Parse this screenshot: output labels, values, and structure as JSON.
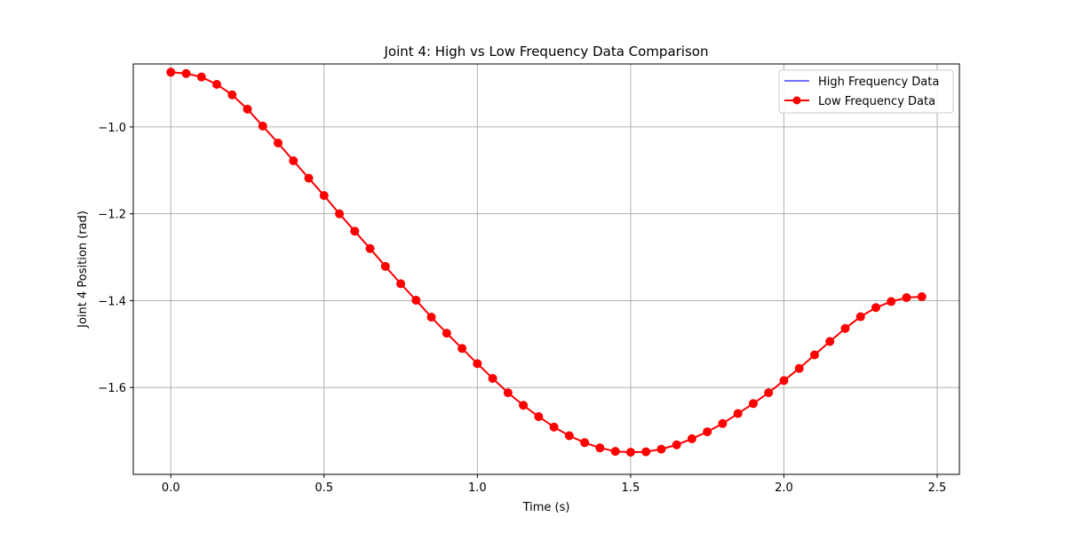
{
  "chart_data": {
    "type": "line",
    "title": "Joint 4: High vs Low Frequency Data Comparison",
    "xlabel": "Time (s)",
    "ylabel": "Joint 4 Position (rad)",
    "xlim": [
      -0.1225,
      2.5725
    ],
    "ylim": [
      -1.8,
      -0.855
    ],
    "xticks": [
      0.0,
      0.5,
      1.0,
      1.5,
      2.0,
      2.5
    ],
    "xtick_labels": [
      "0.0",
      "0.5",
      "1.0",
      "1.5",
      "2.0",
      "2.5"
    ],
    "yticks": [
      -1.0,
      -1.2,
      -1.4,
      -1.6
    ],
    "ytick_labels": [
      "−1.0",
      "−1.2",
      "−1.4",
      "−1.6"
    ],
    "grid": true,
    "legend_position": "top-right",
    "x": [
      0.0,
      0.05,
      0.1,
      0.15,
      0.2,
      0.25,
      0.3,
      0.35,
      0.4,
      0.45,
      0.5,
      0.55,
      0.6,
      0.65,
      0.7,
      0.75,
      0.8,
      0.85,
      0.9,
      0.95,
      1.0,
      1.05,
      1.1,
      1.15,
      1.2,
      1.25,
      1.3,
      1.35,
      1.4,
      1.45,
      1.5,
      1.55,
      1.6,
      1.65,
      1.7,
      1.75,
      1.8,
      1.85,
      1.9,
      1.95,
      2.0,
      2.05,
      2.1,
      2.15,
      2.2,
      2.25,
      2.3,
      2.35,
      2.4,
      2.45
    ],
    "series": [
      {
        "name": "High Frequency Data",
        "color": "#4444ff",
        "marker": "none",
        "values": [
          -0.874,
          -0.877,
          -0.885,
          -0.902,
          -0.926,
          -0.959,
          -0.998,
          -1.037,
          -1.078,
          -1.118,
          -1.158,
          -1.2,
          -1.24,
          -1.28,
          -1.321,
          -1.361,
          -1.399,
          -1.438,
          -1.475,
          -1.51,
          -1.545,
          -1.579,
          -1.612,
          -1.641,
          -1.667,
          -1.691,
          -1.711,
          -1.727,
          -1.739,
          -1.747,
          -1.749,
          -1.748,
          -1.742,
          -1.732,
          -1.718,
          -1.702,
          -1.683,
          -1.66,
          -1.637,
          -1.612,
          -1.584,
          -1.556,
          -1.525,
          -1.494,
          -1.464,
          -1.437,
          -1.416,
          -1.402,
          -1.393,
          -1.391
        ]
      },
      {
        "name": "Low Frequency Data",
        "color": "#ff0000",
        "marker": "circle",
        "values": [
          -0.874,
          -0.877,
          -0.885,
          -0.902,
          -0.926,
          -0.959,
          -0.998,
          -1.037,
          -1.078,
          -1.118,
          -1.158,
          -1.2,
          -1.24,
          -1.28,
          -1.321,
          -1.361,
          -1.399,
          -1.438,
          -1.475,
          -1.51,
          -1.545,
          -1.579,
          -1.612,
          -1.641,
          -1.667,
          -1.691,
          -1.711,
          -1.727,
          -1.739,
          -1.747,
          -1.749,
          -1.748,
          -1.742,
          -1.732,
          -1.718,
          -1.702,
          -1.683,
          -1.66,
          -1.637,
          -1.612,
          -1.584,
          -1.556,
          -1.525,
          -1.494,
          -1.464,
          -1.437,
          -1.416,
          -1.402,
          -1.393,
          -1.391
        ]
      }
    ]
  }
}
